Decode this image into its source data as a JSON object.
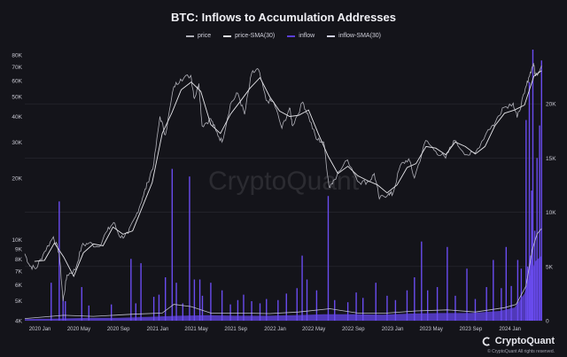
{
  "title": "BTC: Inflows to Accumulation Addresses",
  "legend": [
    {
      "label": "price",
      "color": "#b0b0b8"
    },
    {
      "label": "price-SMA(30)",
      "color": "#e6e6ea"
    },
    {
      "label": "inflow",
      "color": "#5b3fd6"
    },
    {
      "label": "inflow-SMA(30)",
      "color": "#cfcfe0"
    }
  ],
  "watermark": "CryptoQuant",
  "brand": "CryptoQuant",
  "rights": "© CryptoQuant All rights reserved.",
  "chart_data": {
    "type": "line",
    "x_ticks": [
      "2020 Jan",
      "2020 May",
      "2020 Sep",
      "2021 Jan",
      "2021 May",
      "2021 Sep",
      "2022 Jan",
      "2022 May",
      "2022 Sep",
      "2023 Jan",
      "2023 May",
      "2023 Sep",
      "2024 Jan"
    ],
    "x_tick_dates": [
      "2020-01-01",
      "2020-05-01",
      "2020-09-01",
      "2021-01-01",
      "2021-05-01",
      "2021-09-01",
      "2022-01-01",
      "2022-05-01",
      "2022-09-01",
      "2023-01-01",
      "2023-05-01",
      "2023-09-01",
      "2024-01-01"
    ],
    "xlim": [
      "2019-11-15",
      "2024-04-10"
    ],
    "y_left": {
      "scale": "log",
      "ylim": [
        4000,
        85000
      ],
      "ticks": [
        {
          "v": 4000,
          "l": "4K"
        },
        {
          "v": 5000,
          "l": "5K"
        },
        {
          "v": 6000,
          "l": "6K"
        },
        {
          "v": 7000,
          "l": "7K"
        },
        {
          "v": 8000,
          "l": "8K"
        },
        {
          "v": 9000,
          "l": "9K"
        },
        {
          "v": 10000,
          "l": "10K"
        },
        {
          "v": 20000,
          "l": "20K"
        },
        {
          "v": 30000,
          "l": "30K"
        },
        {
          "v": 40000,
          "l": "40K"
        },
        {
          "v": 50000,
          "l": "50K"
        },
        {
          "v": 60000,
          "l": "60K"
        },
        {
          "v": 70000,
          "l": "70K"
        },
        {
          "v": 80000,
          "l": "80K"
        }
      ]
    },
    "y_right": {
      "scale": "linear",
      "ylim": [
        0,
        25000
      ],
      "ticks": [
        {
          "v": 0,
          "l": "0"
        },
        {
          "v": 5000,
          "l": "5K"
        },
        {
          "v": 10000,
          "l": "10K"
        },
        {
          "v": 15000,
          "l": "15K"
        },
        {
          "v": 20000,
          "l": "20K"
        }
      ]
    },
    "grid": true,
    "price": [
      [
        "2019-11-15",
        8500
      ],
      [
        "2019-12-01",
        7400
      ],
      [
        "2019-12-20",
        7200
      ],
      [
        "2020-01-15",
        8700
      ],
      [
        "2020-02-12",
        10300
      ],
      [
        "2020-03-01",
        8600
      ],
      [
        "2020-03-13",
        5000
      ],
      [
        "2020-03-25",
        6700
      ],
      [
        "2020-04-20",
        7100
      ],
      [
        "2020-05-10",
        9300
      ],
      [
        "2020-06-01",
        9600
      ],
      [
        "2020-07-01",
        9200
      ],
      [
        "2020-07-28",
        11000
      ],
      [
        "2020-08-17",
        12100
      ],
      [
        "2020-09-08",
        10200
      ],
      [
        "2020-10-01",
        10700
      ],
      [
        "2020-10-25",
        13000
      ],
      [
        "2020-11-15",
        16000
      ],
      [
        "2020-12-01",
        19000
      ],
      [
        "2020-12-20",
        23500
      ],
      [
        "2021-01-08",
        40000
      ],
      [
        "2021-01-25",
        32500
      ],
      [
        "2021-02-20",
        56000
      ],
      [
        "2021-03-13",
        61000
      ],
      [
        "2021-04-14",
        63500
      ],
      [
        "2021-04-25",
        49000
      ],
      [
        "2021-05-09",
        58000
      ],
      [
        "2021-05-19",
        36000
      ],
      [
        "2021-06-15",
        39000
      ],
      [
        "2021-07-01",
        34000
      ],
      [
        "2021-07-20",
        30000
      ],
      [
        "2021-08-15",
        46000
      ],
      [
        "2021-09-07",
        52000
      ],
      [
        "2021-09-28",
        41000
      ],
      [
        "2021-10-20",
        65000
      ],
      [
        "2021-11-10",
        68000
      ],
      [
        "2021-12-04",
        48000
      ],
      [
        "2021-12-28",
        47000
      ],
      [
        "2022-01-22",
        35000
      ],
      [
        "2022-02-15",
        44000
      ],
      [
        "2022-02-24",
        36000
      ],
      [
        "2022-03-28",
        47000
      ],
      [
        "2022-04-15",
        40000
      ],
      [
        "2022-05-09",
        31000
      ],
      [
        "2022-06-01",
        30000
      ],
      [
        "2022-06-18",
        18000
      ],
      [
        "2022-07-01",
        19500
      ],
      [
        "2022-08-14",
        24500
      ],
      [
        "2022-09-20",
        19000
      ],
      [
        "2022-10-20",
        19200
      ],
      [
        "2022-11-05",
        21000
      ],
      [
        "2022-11-21",
        15800
      ],
      [
        "2022-12-20",
        16800
      ],
      [
        "2023-01-01",
        16600
      ],
      [
        "2023-01-25",
        23000
      ],
      [
        "2023-02-20",
        24800
      ],
      [
        "2023-03-10",
        20000
      ],
      [
        "2023-04-14",
        30500
      ],
      [
        "2023-05-15",
        27000
      ],
      [
        "2023-06-15",
        25000
      ],
      [
        "2023-07-10",
        30500
      ],
      [
        "2023-08-20",
        26000
      ],
      [
        "2023-09-15",
        26500
      ],
      [
        "2023-10-25",
        34500
      ],
      [
        "2023-11-15",
        37000
      ],
      [
        "2023-12-08",
        44000
      ],
      [
        "2024-01-11",
        46500
      ],
      [
        "2024-01-23",
        39500
      ],
      [
        "2024-02-15",
        52000
      ],
      [
        "2024-02-28",
        62000
      ],
      [
        "2024-03-14",
        73000
      ],
      [
        "2024-03-20",
        63000
      ],
      [
        "2024-04-08",
        71000
      ]
    ],
    "price_sma30": [
      [
        "2019-12-15",
        7800
      ],
      [
        "2020-01-15",
        7900
      ],
      [
        "2020-02-15",
        9600
      ],
      [
        "2020-03-15",
        8200
      ],
      [
        "2020-04-15",
        6600
      ],
      [
        "2020-05-15",
        8600
      ],
      [
        "2020-06-15",
        9500
      ],
      [
        "2020-07-15",
        9300
      ],
      [
        "2020-08-15",
        11500
      ],
      [
        "2020-09-15",
        10600
      ],
      [
        "2020-10-15",
        11000
      ],
      [
        "2020-11-15",
        14500
      ],
      [
        "2020-12-15",
        19000
      ],
      [
        "2021-01-15",
        33000
      ],
      [
        "2021-02-15",
        42000
      ],
      [
        "2021-03-15",
        54000
      ],
      [
        "2021-04-15",
        59000
      ],
      [
        "2021-05-15",
        53000
      ],
      [
        "2021-06-15",
        36500
      ],
      [
        "2021-07-15",
        33000
      ],
      [
        "2021-08-15",
        41000
      ],
      [
        "2021-09-15",
        47500
      ],
      [
        "2021-10-15",
        55000
      ],
      [
        "2021-11-15",
        62000
      ],
      [
        "2021-12-15",
        50000
      ],
      [
        "2022-01-15",
        42500
      ],
      [
        "2022-02-15",
        40000
      ],
      [
        "2022-03-15",
        40500
      ],
      [
        "2022-04-15",
        43000
      ],
      [
        "2022-05-15",
        33000
      ],
      [
        "2022-06-15",
        25500
      ],
      [
        "2022-07-15",
        21000
      ],
      [
        "2022-08-15",
        22800
      ],
      [
        "2022-09-15",
        20500
      ],
      [
        "2022-10-15",
        19400
      ],
      [
        "2022-11-15",
        18500
      ],
      [
        "2022-12-15",
        16900
      ],
      [
        "2023-01-15",
        18500
      ],
      [
        "2023-02-15",
        22500
      ],
      [
        "2023-03-15",
        23500
      ],
      [
        "2023-04-15",
        28500
      ],
      [
        "2023-05-15",
        28000
      ],
      [
        "2023-06-15",
        26000
      ],
      [
        "2023-07-15",
        30000
      ],
      [
        "2023-08-15",
        28500
      ],
      [
        "2023-09-15",
        26200
      ],
      [
        "2023-10-15",
        28500
      ],
      [
        "2023-11-15",
        36000
      ],
      [
        "2023-12-15",
        41500
      ],
      [
        "2024-01-15",
        43000
      ],
      [
        "2024-02-15",
        45500
      ],
      [
        "2024-03-15",
        63000
      ],
      [
        "2024-04-08",
        67000
      ]
    ],
    "inflow_spikes": [
      [
        "2020-02-05",
        3500
      ],
      [
        "2020-03-01",
        11000
      ],
      [
        "2020-03-13",
        2200
      ],
      [
        "2020-03-20",
        1800
      ],
      [
        "2020-05-10",
        3100
      ],
      [
        "2020-06-01",
        1400
      ],
      [
        "2020-08-10",
        1500
      ],
      [
        "2020-10-10",
        5700
      ],
      [
        "2020-10-25",
        1600
      ],
      [
        "2020-11-10",
        5300
      ],
      [
        "2020-12-20",
        2200
      ],
      [
        "2021-01-05",
        2400
      ],
      [
        "2021-01-25",
        4000
      ],
      [
        "2021-02-15",
        14000
      ],
      [
        "2021-02-28",
        3500
      ],
      [
        "2021-03-20",
        1600
      ],
      [
        "2021-04-10",
        13300
      ],
      [
        "2021-04-25",
        3800
      ],
      [
        "2021-05-12",
        3800
      ],
      [
        "2021-05-20",
        2300
      ],
      [
        "2021-06-15",
        3500
      ],
      [
        "2021-07-20",
        2800
      ],
      [
        "2021-08-15",
        1500
      ],
      [
        "2021-09-07",
        1900
      ],
      [
        "2021-09-25",
        2400
      ],
      [
        "2021-10-20",
        1800
      ],
      [
        "2021-11-15",
        1600
      ],
      [
        "2021-12-05",
        2000
      ],
      [
        "2022-01-10",
        1900
      ],
      [
        "2022-02-05",
        2500
      ],
      [
        "2022-03-10",
        3000
      ],
      [
        "2022-03-26",
        6000
      ],
      [
        "2022-04-10",
        3800
      ],
      [
        "2022-05-10",
        2800
      ],
      [
        "2022-06-15",
        11500
      ],
      [
        "2022-07-05",
        1900
      ],
      [
        "2022-08-15",
        1700
      ],
      [
        "2022-09-10",
        2600
      ],
      [
        "2022-10-01",
        2100
      ],
      [
        "2022-11-10",
        3500
      ],
      [
        "2022-12-15",
        2300
      ],
      [
        "2023-01-10",
        1900
      ],
      [
        "2023-02-15",
        2800
      ],
      [
        "2023-03-10",
        4000
      ],
      [
        "2023-04-01",
        7300
      ],
      [
        "2023-04-20",
        2800
      ],
      [
        "2023-05-20",
        3100
      ],
      [
        "2023-06-20",
        6800
      ],
      [
        "2023-07-15",
        2300
      ],
      [
        "2023-08-20",
        4800
      ],
      [
        "2023-09-15",
        2000
      ],
      [
        "2023-10-20",
        3100
      ],
      [
        "2023-11-10",
        5600
      ],
      [
        "2023-12-05",
        3000
      ],
      [
        "2023-12-20",
        6800
      ],
      [
        "2024-01-05",
        3200
      ],
      [
        "2024-01-25",
        5600
      ],
      [
        "2024-02-05",
        4800
      ],
      [
        "2024-02-20",
        18500
      ],
      [
        "2024-02-25",
        5000
      ],
      [
        "2024-03-01",
        22000
      ],
      [
        "2024-03-05",
        6000
      ],
      [
        "2024-03-08",
        12000
      ],
      [
        "2024-03-12",
        25000
      ],
      [
        "2024-03-18",
        8300
      ],
      [
        "2024-03-25",
        15000
      ],
      [
        "2024-04-02",
        18000
      ],
      [
        "2024-04-08",
        24000
      ]
    ],
    "inflow_baseline": [
      [
        "2019-11-15",
        150
      ],
      [
        "2020-03-01",
        200
      ],
      [
        "2020-06-01",
        250
      ],
      [
        "2020-09-01",
        250
      ],
      [
        "2020-12-01",
        350
      ],
      [
        "2021-03-01",
        450
      ],
      [
        "2021-06-01",
        500
      ],
      [
        "2021-09-01",
        450
      ],
      [
        "2021-12-01",
        450
      ],
      [
        "2022-03-01",
        500
      ],
      [
        "2022-06-01",
        600
      ],
      [
        "2022-09-01",
        600
      ],
      [
        "2022-12-01",
        550
      ],
      [
        "2023-03-01",
        650
      ],
      [
        "2023-06-01",
        700
      ],
      [
        "2023-09-01",
        700
      ],
      [
        "2023-12-01",
        900
      ],
      [
        "2024-01-15",
        1200
      ],
      [
        "2024-02-15",
        2500
      ],
      [
        "2024-03-01",
        4000
      ],
      [
        "2024-03-20",
        5500
      ],
      [
        "2024-04-08",
        6000
      ]
    ],
    "inflow_sma30": [
      [
        "2019-11-15",
        200
      ],
      [
        "2020-03-15",
        500
      ],
      [
        "2020-06-15",
        400
      ],
      [
        "2020-10-15",
        600
      ],
      [
        "2021-01-15",
        700
      ],
      [
        "2021-02-20",
        1500
      ],
      [
        "2021-04-15",
        1300
      ],
      [
        "2021-06-15",
        700
      ],
      [
        "2021-09-15",
        700
      ],
      [
        "2021-12-15",
        650
      ],
      [
        "2022-03-15",
        800
      ],
      [
        "2022-06-20",
        1100
      ],
      [
        "2022-09-15",
        700
      ],
      [
        "2022-12-15",
        700
      ],
      [
        "2023-03-15",
        900
      ],
      [
        "2023-06-20",
        1000
      ],
      [
        "2023-09-15",
        800
      ],
      [
        "2023-12-15",
        1200
      ],
      [
        "2024-01-20",
        1500
      ],
      [
        "2024-02-20",
        3200
      ],
      [
        "2024-03-10",
        6500
      ],
      [
        "2024-03-25",
        8000
      ],
      [
        "2024-04-08",
        8500
      ]
    ]
  }
}
